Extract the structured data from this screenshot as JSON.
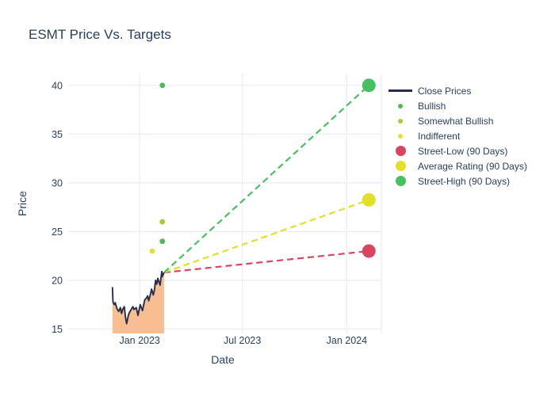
{
  "chart_data": {
    "type": "line",
    "title": "ESMT Price Vs. Targets",
    "xlabel": "Date",
    "ylabel": "Price",
    "axes": {
      "x_ticks": [
        {
          "label": "Jan 2023",
          "date": "2023-01-01"
        },
        {
          "label": "Jul 2023",
          "date": "2023-07-01"
        },
        {
          "label": "Jan 2024",
          "date": "2024-01-01"
        }
      ],
      "y_ticks": [
        15,
        20,
        25,
        30,
        35,
        40
      ],
      "x_range": [
        "2022-08-28",
        "2024-03-02"
      ],
      "y_range": [
        14.55,
        41.2
      ],
      "grid": true,
      "legend_position": "right"
    },
    "colors": {
      "close_line": "#252e48",
      "close_fill": "#f9bd92",
      "bullish": "#4bbb57",
      "somewhat_bullish": "#a2cc3a",
      "indifferent": "#e3df3a",
      "street_low": "#d9455f",
      "average_rating": "#e1df26",
      "street_high": "#47c061",
      "grid": "#e9eef6",
      "text": "#2a3f5f",
      "background": "#ffffff"
    },
    "close_prices": {
      "name": "Close Prices",
      "points": [
        [
          "2022-11-14",
          19.3
        ],
        [
          "2022-11-15",
          17.8
        ],
        [
          "2022-11-17",
          17.5
        ],
        [
          "2022-11-19",
          17.7
        ],
        [
          "2022-11-22",
          17.1
        ],
        [
          "2022-11-25",
          16.8
        ],
        [
          "2022-11-28",
          17.2
        ],
        [
          "2022-11-30",
          16.6
        ],
        [
          "2022-12-02",
          17.0
        ],
        [
          "2022-12-05",
          17.3
        ],
        [
          "2022-12-07",
          16.2
        ],
        [
          "2022-12-09",
          15.55
        ],
        [
          "2022-12-12",
          16.4
        ],
        [
          "2022-12-14",
          16.7
        ],
        [
          "2022-12-16",
          16.9
        ],
        [
          "2022-12-20",
          17.3
        ],
        [
          "2022-12-22",
          17.0
        ],
        [
          "2022-12-26",
          17.2
        ],
        [
          "2022-12-29",
          16.4
        ],
        [
          "2023-01-02",
          17.5
        ],
        [
          "2023-01-04",
          17.2
        ],
        [
          "2023-01-06",
          16.9
        ],
        [
          "2023-01-10",
          18.0
        ],
        [
          "2023-01-13",
          18.2
        ],
        [
          "2023-01-15",
          18.4
        ],
        [
          "2023-01-17",
          17.9
        ],
        [
          "2023-01-20",
          18.6
        ],
        [
          "2023-01-22",
          19.1
        ],
        [
          "2023-01-25",
          18.5
        ],
        [
          "2023-01-27",
          19.0
        ],
        [
          "2023-01-29",
          20.0
        ],
        [
          "2023-01-31",
          19.6
        ],
        [
          "2023-02-02",
          20.2
        ],
        [
          "2023-02-06",
          19.5
        ],
        [
          "2023-02-09",
          20.9
        ],
        [
          "2023-02-10",
          20.4
        ],
        [
          "2023-02-13",
          20.8
        ]
      ]
    },
    "ratings": [
      {
        "name": "Bullish",
        "color_key": "bullish",
        "date": "2023-02-10",
        "price": 40
      },
      {
        "name": "Somewhat Bullish",
        "color_key": "somewhat_bullish",
        "date": "2023-02-10",
        "price": 26
      },
      {
        "name": "Bullish",
        "color_key": "bullish",
        "date": "2023-02-10",
        "price": 24
      },
      {
        "name": "Indifferent",
        "color_key": "indifferent",
        "date": "2023-01-23",
        "price": 23
      }
    ],
    "projection_origin": {
      "date": "2023-02-13",
      "price": 20.8
    },
    "targets": [
      {
        "name": "Street-Low (90 Days)",
        "color_key": "street_low",
        "date": "2024-02-09",
        "price": 23
      },
      {
        "name": "Average Rating (90 Days)",
        "color_key": "average_rating",
        "date": "2024-02-09",
        "price": 28.25
      },
      {
        "name": "Street-High (90 Days)",
        "color_key": "street_high",
        "date": "2024-02-09",
        "price": 40
      }
    ],
    "legend": [
      {
        "label": "Close Prices",
        "type": "line",
        "color_key": "close_line"
      },
      {
        "label": "Bullish",
        "type": "dot-small",
        "color_key": "bullish"
      },
      {
        "label": "Somewhat Bullish",
        "type": "dot-small",
        "color_key": "somewhat_bullish"
      },
      {
        "label": "Indifferent",
        "type": "dot-small",
        "color_key": "indifferent"
      },
      {
        "label": "Street-Low (90 Days)",
        "type": "dot-large",
        "color_key": "street_low"
      },
      {
        "label": "Average Rating (90 Days)",
        "type": "dot-large",
        "color_key": "average_rating"
      },
      {
        "label": "Street-High (90 Days)",
        "type": "dot-large",
        "color_key": "street_high"
      }
    ]
  }
}
